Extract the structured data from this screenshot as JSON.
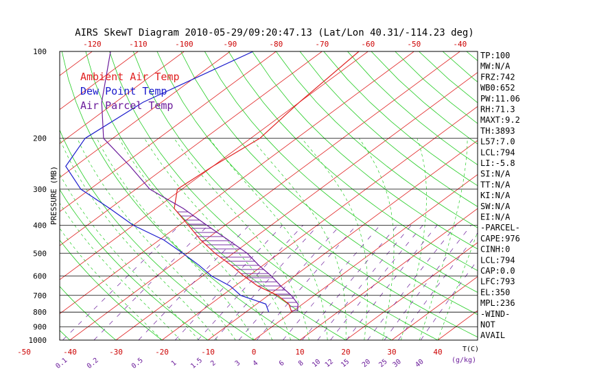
{
  "title": "AIRS SkewT Diagram 2010-05-29/09:20:47.13 (Lat/Lon 40.31/-114.23 deg)",
  "legend": [
    {
      "label": "Ambient Air Temp",
      "color": "#e02020"
    },
    {
      "label": "Dew Point Temp",
      "color": "#1a1acc"
    },
    {
      "label": "Air Parcel Temp",
      "color": "#6a1a9a"
    }
  ],
  "colors": {
    "temperature": "#e02020",
    "dewpoint": "#1a1acc",
    "parcel": "#6a1a9a",
    "isotherm": "#e02020",
    "dry_adiabat": "#22cc22",
    "moist_adiabat": "#22cc22",
    "mixing_ratio": "#6a1a9a",
    "isobar": "#000000",
    "axis_labels": "#cc0000",
    "mixing_labels": "#6a1a9a"
  },
  "chart_data": {
    "type": "line",
    "title": "AIRS SkewT Diagram 2010-05-29/09:20:47.13 (Lat/Lon 40.31/-114.23 deg)",
    "ylabel": "PRESSURE (MB)",
    "xlabel": "T(C)",
    "y_scale": "log",
    "y_reversed": true,
    "ylim_mb": [
      1000,
      100
    ],
    "pressure_ticks": [
      "100",
      "200",
      "300",
      "400",
      "500",
      "600",
      "700",
      "800",
      "900",
      "1000"
    ],
    "top_temperature_ticks": [
      "-120",
      "-110",
      "-100",
      "-90",
      "-80",
      "-70",
      "-60",
      "-50",
      "-40"
    ],
    "bottom_temperature_ticks": [
      "-50",
      "-40",
      "-30",
      "-20",
      "-10",
      "0",
      "10",
      "20",
      "30",
      "40"
    ],
    "bottom_axis_unit": "T(C)",
    "mixing_ratio_ticks": [
      "0.1",
      "0.2",
      "0.5",
      "1",
      "1.5",
      "2",
      "3",
      "4",
      "6",
      "8",
      "10",
      "12",
      "15",
      "20",
      "25",
      "30",
      "40"
    ],
    "mixing_ratio_unit": "(g/kg)",
    "series": [
      {
        "name": "Ambient Air Temp",
        "points": [
          [
            100,
            -62
          ],
          [
            150,
            -60
          ],
          [
            200,
            -58
          ],
          [
            250,
            -60
          ],
          [
            300,
            -61
          ],
          [
            350,
            -56
          ],
          [
            400,
            -48
          ],
          [
            450,
            -41
          ],
          [
            500,
            -34
          ],
          [
            550,
            -27
          ],
          [
            600,
            -21
          ],
          [
            650,
            -15
          ],
          [
            700,
            -8
          ],
          [
            750,
            -3
          ],
          [
            800,
            0
          ]
        ]
      },
      {
        "name": "Dew Point Temp",
        "points": [
          [
            100,
            -85
          ],
          [
            150,
            -94
          ],
          [
            200,
            -96
          ],
          [
            250,
            -92
          ],
          [
            300,
            -82
          ],
          [
            350,
            -70
          ],
          [
            400,
            -60
          ],
          [
            450,
            -49
          ],
          [
            500,
            -41
          ],
          [
            550,
            -34
          ],
          [
            600,
            -28
          ],
          [
            650,
            -21
          ],
          [
            700,
            -16
          ],
          [
            750,
            -8
          ],
          [
            800,
            -5
          ]
        ]
      },
      {
        "name": "Air Parcel Temp",
        "points": [
          [
            100,
            -116
          ],
          [
            150,
            -103
          ],
          [
            200,
            -92
          ],
          [
            250,
            -78
          ],
          [
            300,
            -67
          ],
          [
            350,
            -54
          ],
          [
            400,
            -44
          ],
          [
            450,
            -35
          ],
          [
            500,
            -27
          ],
          [
            550,
            -21
          ],
          [
            600,
            -15
          ],
          [
            650,
            -10
          ],
          [
            700,
            -5
          ],
          [
            750,
            -1
          ],
          [
            794,
            1
          ]
        ]
      }
    ],
    "cape_shaded_range_mb": [
      794,
      350
    ]
  },
  "indices": [
    "TP:100",
    "MW:N/A",
    "FRZ:742",
    "WB0:652",
    "PW:11.06",
    "RH:71.3",
    "MAXT:9.2",
    "TH:3893",
    "L57:7.0",
    "LCL:794",
    "LI:-5.8",
    "SI:N/A",
    "TT:N/A",
    "KI:N/A",
    "SW:N/A",
    "EI:N/A",
    "-PARCEL-",
    "CAPE:976",
    "CINH:0",
    "LCL:794",
    "CAP:0.0",
    "LFC:793",
    "EL:350",
    "MPL:236",
    "-WIND-",
    "NOT",
    "AVAIL"
  ]
}
